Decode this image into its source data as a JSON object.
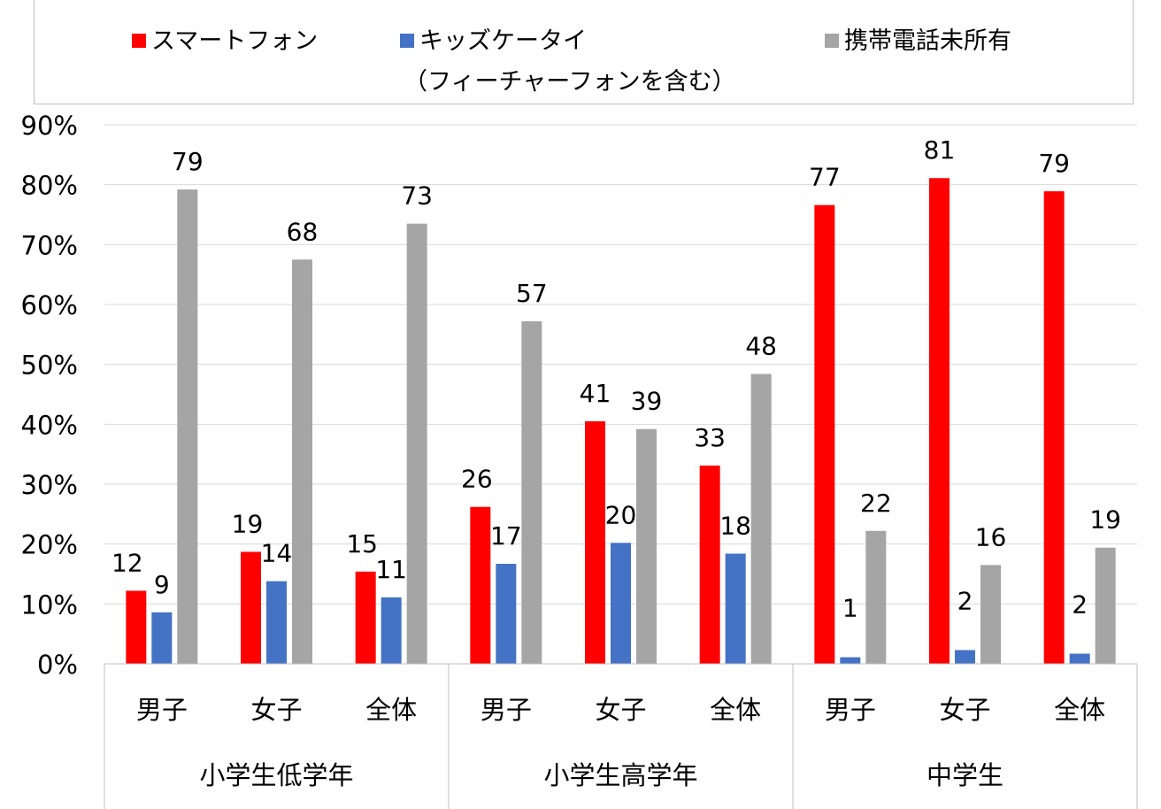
{
  "chart_data": {
    "type": "bar",
    "groups": [
      {
        "name": "小学生低学年",
        "categories": [
          "男子",
          "女子",
          "全体"
        ]
      },
      {
        "name": "小学生高学年",
        "categories": [
          "男子",
          "女子",
          "全体"
        ]
      },
      {
        "name": "中学生",
        "categories": [
          "男子",
          "女子",
          "全体"
        ]
      }
    ],
    "categories": [
      "男子",
      "女子",
      "全体",
      "男子",
      "女子",
      "全体",
      "男子",
      "女子",
      "全体"
    ],
    "series": [
      {
        "name": "スマートフォン",
        "color": "#ff0000",
        "values": [
          12,
          19,
          15,
          26,
          41,
          33,
          77,
          81,
          79
        ],
        "exact": [
          12.2,
          18.7,
          15.4,
          26.2,
          40.5,
          33.1,
          76.6,
          81.1,
          78.9
        ]
      },
      {
        "name": "キッズケータイ",
        "name_line2": "（フィーチャーフォンを含む）",
        "color": "#4472c4",
        "values": [
          9,
          14,
          11,
          17,
          20,
          18,
          1,
          2,
          2
        ],
        "exact": [
          8.6,
          13.8,
          11.1,
          16.7,
          20.2,
          18.4,
          1.1,
          2.3,
          1.7
        ]
      },
      {
        "name": "携帯電話未所有",
        "color": "#a5a5a5",
        "values": [
          79,
          68,
          73,
          57,
          39,
          48,
          22,
          16,
          19
        ],
        "exact": [
          79.2,
          67.5,
          73.5,
          57.2,
          39.2,
          48.4,
          22.2,
          16.5,
          19.4
        ]
      }
    ],
    "ylim": [
      0,
      90
    ],
    "yticks": [
      "0%",
      "10%",
      "20%",
      "30%",
      "40%",
      "50%",
      "60%",
      "70%",
      "80%",
      "90%"
    ],
    "grid": true,
    "legend_position": "top"
  }
}
